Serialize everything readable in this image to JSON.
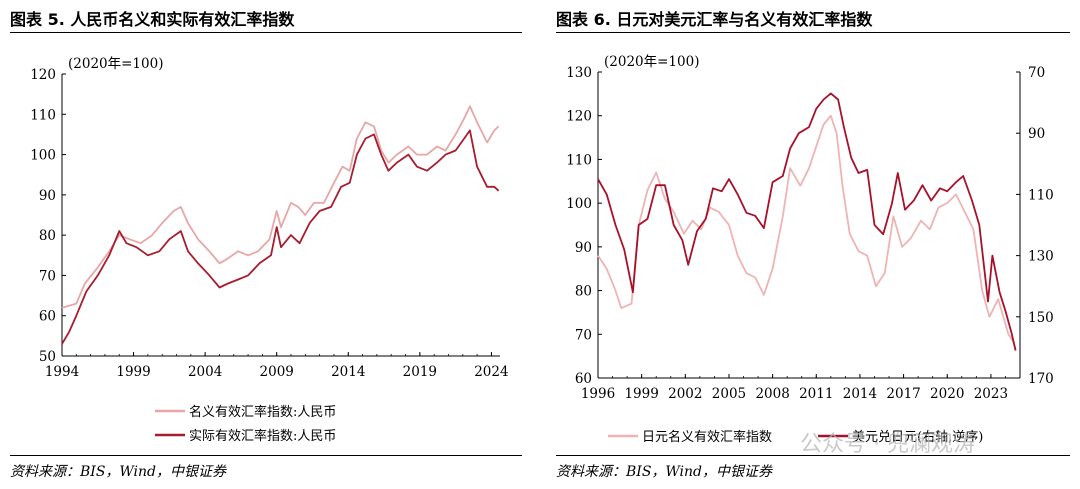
{
  "left_panel": {
    "title": "图表 5. 人民币名义和实际有效汇率指数",
    "source": "资料来源：BIS，Wind，中银证券"
  },
  "right_panel": {
    "title": "图表 6. 日元对美元汇率与名义有效汇率指数",
    "source": "资料来源：BIS，Wind，中银证券"
  },
  "watermark": "公众号 · 兜澜观涛",
  "chart_data": [
    {
      "type": "line",
      "title": "图表 5. 人民币名义和实际有效汇率指数",
      "unit_label": "(2020年=100)",
      "x_range": [
        1994,
        2024.6
      ],
      "ylim": [
        50,
        120
      ],
      "x_ticks": [
        "1994",
        "1999",
        "2004",
        "2009",
        "2014",
        "2019",
        "2024"
      ],
      "y_ticks": [
        "50",
        "60",
        "70",
        "80",
        "90",
        "100",
        "110",
        "120"
      ],
      "grid": false,
      "legend_position": "bottom",
      "series": [
        {
          "name": "名义有效汇率指数:人民币",
          "color": "#e8a6a6",
          "points": [
            [
              1994,
              62
            ],
            [
              1995,
              63
            ],
            [
              1995.6,
              68
            ],
            [
              1996.5,
              72
            ],
            [
              1997.3,
              76
            ],
            [
              1998,
              80
            ],
            [
              1998.7,
              79
            ],
            [
              1999.5,
              78
            ],
            [
              2000.3,
              80
            ],
            [
              2001,
              83
            ],
            [
              2001.8,
              86
            ],
            [
              2002.3,
              87
            ],
            [
              2002.8,
              83
            ],
            [
              2003.5,
              79
            ],
            [
              2004.3,
              76
            ],
            [
              2005,
              73
            ],
            [
              2005.5,
              74
            ],
            [
              2006.3,
              76
            ],
            [
              2007,
              75
            ],
            [
              2007.7,
              76
            ],
            [
              2008.5,
              79
            ],
            [
              2009,
              86
            ],
            [
              2009.3,
              82
            ],
            [
              2010,
              88
            ],
            [
              2010.5,
              87
            ],
            [
              2011,
              85
            ],
            [
              2011.6,
              88
            ],
            [
              2012.3,
              88
            ],
            [
              2013,
              93
            ],
            [
              2013.6,
              97
            ],
            [
              2014.1,
              96
            ],
            [
              2014.6,
              104
            ],
            [
              2015.2,
              108
            ],
            [
              2015.8,
              107
            ],
            [
              2016.3,
              101
            ],
            [
              2016.8,
              98
            ],
            [
              2017.4,
              100
            ],
            [
              2018.2,
              102
            ],
            [
              2018.8,
              100
            ],
            [
              2019.5,
              100
            ],
            [
              2020.2,
              102
            ],
            [
              2020.8,
              101
            ],
            [
              2021.5,
              105
            ],
            [
              2022.1,
              109
            ],
            [
              2022.5,
              112
            ],
            [
              2023,
              108
            ],
            [
              2023.7,
              103
            ],
            [
              2024.2,
              106
            ],
            [
              2024.5,
              107
            ]
          ]
        },
        {
          "name": "实际有效汇率指数:人民币",
          "color": "#a81c2e",
          "points": [
            [
              1994,
              53
            ],
            [
              1994.5,
              56
            ],
            [
              1995,
              60
            ],
            [
              1995.7,
              66
            ],
            [
              1996.5,
              70
            ],
            [
              1997.3,
              75
            ],
            [
              1998,
              81
            ],
            [
              1998.5,
              78
            ],
            [
              1999.2,
              77
            ],
            [
              2000,
              75
            ],
            [
              2000.8,
              76
            ],
            [
              2001.5,
              79
            ],
            [
              2002.3,
              81
            ],
            [
              2002.8,
              76
            ],
            [
              2003.5,
              73
            ],
            [
              2004.3,
              70
            ],
            [
              2005,
              67
            ],
            [
              2005.6,
              68
            ],
            [
              2006.3,
              69
            ],
            [
              2007,
              70
            ],
            [
              2007.8,
              73
            ],
            [
              2008.6,
              75
            ],
            [
              2009,
              82
            ],
            [
              2009.3,
              77
            ],
            [
              2010,
              80
            ],
            [
              2010.6,
              78
            ],
            [
              2011.3,
              83
            ],
            [
              2012,
              86
            ],
            [
              2012.8,
              87
            ],
            [
              2013.5,
              92
            ],
            [
              2014.1,
              93
            ],
            [
              2014.6,
              100
            ],
            [
              2015.2,
              104
            ],
            [
              2015.8,
              105
            ],
            [
              2016.3,
              100
            ],
            [
              2016.8,
              96
            ],
            [
              2017.4,
              98
            ],
            [
              2018.2,
              100
            ],
            [
              2018.8,
              97
            ],
            [
              2019.5,
              96
            ],
            [
              2020.2,
              98
            ],
            [
              2020.8,
              100
            ],
            [
              2021.5,
              101
            ],
            [
              2022.1,
              104
            ],
            [
              2022.5,
              106
            ],
            [
              2023,
              97
            ],
            [
              2023.7,
              92
            ],
            [
              2024.2,
              92
            ],
            [
              2024.5,
              91
            ]
          ]
        }
      ]
    },
    {
      "type": "line",
      "title": "图表 6. 日元对美元汇率与名义有效汇率指数",
      "unit_label": "(2020年=100)",
      "x_range": [
        1996,
        2025
      ],
      "ylim": [
        60,
        130
      ],
      "y2lim": [
        70,
        170
      ],
      "y2_inverted": true,
      "x_ticks": [
        "1996",
        "1999",
        "2002",
        "2005",
        "2008",
        "2011",
        "2014",
        "2017",
        "2020",
        "2023"
      ],
      "y_ticks": [
        "60",
        "70",
        "80",
        "90",
        "100",
        "110",
        "120",
        "130"
      ],
      "y2_ticks": [
        "70",
        "90",
        "110",
        "130",
        "150",
        "170"
      ],
      "grid": false,
      "legend_position": "bottom",
      "series": [
        {
          "name": "日元名义有效汇率指数",
          "axis": "left",
          "color": "#f0b3b3",
          "points": [
            [
              1996,
              88
            ],
            [
              1996.6,
              85
            ],
            [
              1997.2,
              80
            ],
            [
              1997.6,
              76
            ],
            [
              1998.3,
              77
            ],
            [
              1998.8,
              95
            ],
            [
              1999.4,
              103
            ],
            [
              2000,
              107
            ],
            [
              2000.6,
              101
            ],
            [
              2001.2,
              98
            ],
            [
              2001.9,
              93
            ],
            [
              2002.5,
              96
            ],
            [
              2003.1,
              94
            ],
            [
              2003.7,
              99
            ],
            [
              2004.3,
              98
            ],
            [
              2005,
              95
            ],
            [
              2005.6,
              88
            ],
            [
              2006.2,
              84
            ],
            [
              2006.8,
              83
            ],
            [
              2007.4,
              79
            ],
            [
              2008,
              85
            ],
            [
              2008.7,
              97
            ],
            [
              2009.2,
              108
            ],
            [
              2009.9,
              104
            ],
            [
              2010.5,
              108
            ],
            [
              2011,
              113
            ],
            [
              2011.5,
              118
            ],
            [
              2012,
              120
            ],
            [
              2012.4,
              116
            ],
            [
              2012.8,
              104
            ],
            [
              2013.3,
              93
            ],
            [
              2013.9,
              89
            ],
            [
              2014.5,
              88
            ],
            [
              2015.1,
              81
            ],
            [
              2015.7,
              84
            ],
            [
              2016.3,
              97
            ],
            [
              2016.9,
              90
            ],
            [
              2017.5,
              92
            ],
            [
              2018.2,
              96
            ],
            [
              2018.8,
              94
            ],
            [
              2019.4,
              99
            ],
            [
              2020,
              100
            ],
            [
              2020.6,
              102
            ],
            [
              2021.2,
              98
            ],
            [
              2021.8,
              94
            ],
            [
              2022.4,
              80
            ],
            [
              2022.9,
              74
            ],
            [
              2023.5,
              78
            ],
            [
              2024.2,
              70
            ],
            [
              2024.6,
              68
            ]
          ]
        },
        {
          "name": "美元兑日元(右轴,逆序)",
          "axis": "right",
          "color": "#a8102a",
          "points": [
            [
              1996,
              105
            ],
            [
              1996.6,
              110
            ],
            [
              1997.2,
              120
            ],
            [
              1997.8,
              128
            ],
            [
              1998.4,
              142
            ],
            [
              1998.8,
              120
            ],
            [
              1999.4,
              118
            ],
            [
              2000,
              107
            ],
            [
              2000.6,
              107
            ],
            [
              2001.2,
              120
            ],
            [
              2001.8,
              125
            ],
            [
              2002.2,
              133
            ],
            [
              2002.8,
              122
            ],
            [
              2003.4,
              118
            ],
            [
              2003.9,
              108
            ],
            [
              2004.5,
              109
            ],
            [
              2005,
              105
            ],
            [
              2005.6,
              110
            ],
            [
              2006.2,
              116
            ],
            [
              2006.8,
              117
            ],
            [
              2007.4,
              121
            ],
            [
              2008,
              106
            ],
            [
              2008.7,
              104
            ],
            [
              2009.2,
              95
            ],
            [
              2009.8,
              90
            ],
            [
              2010.5,
              88
            ],
            [
              2011,
              82
            ],
            [
              2011.5,
              79
            ],
            [
              2012,
              77
            ],
            [
              2012.5,
              79
            ],
            [
              2012.9,
              88
            ],
            [
              2013.4,
              98
            ],
            [
              2013.9,
              103
            ],
            [
              2014.5,
              102
            ],
            [
              2015,
              120
            ],
            [
              2015.6,
              123
            ],
            [
              2016.2,
              113
            ],
            [
              2016.6,
              103
            ],
            [
              2017.1,
              115
            ],
            [
              2017.7,
              112
            ],
            [
              2018.3,
              107
            ],
            [
              2018.9,
              112
            ],
            [
              2019.5,
              108
            ],
            [
              2020,
              109
            ],
            [
              2020.6,
              106
            ],
            [
              2021.1,
              104
            ],
            [
              2021.7,
              112
            ],
            [
              2022.2,
              120
            ],
            [
              2022.8,
              145
            ],
            [
              2023.1,
              130
            ],
            [
              2023.6,
              142
            ],
            [
              2024,
              148
            ],
            [
              2024.4,
              155
            ],
            [
              2024.7,
              161
            ]
          ]
        }
      ]
    }
  ]
}
